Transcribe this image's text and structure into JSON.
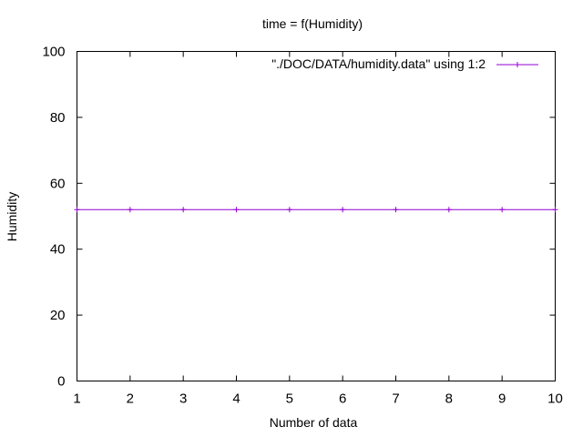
{
  "chart_data": {
    "type": "line",
    "title": "time = f(Humidity)",
    "xlabel": "Number of data",
    "ylabel": "Humidity",
    "xlim": [
      1,
      10
    ],
    "ylim": [
      0,
      100
    ],
    "xticks": [
      "1",
      "2",
      "3",
      "4",
      "5",
      "6",
      "7",
      "8",
      "9",
      "10"
    ],
    "yticks": [
      "0",
      "20",
      "40",
      "60",
      "80",
      "100"
    ],
    "grid": false,
    "legend_position": "top-right",
    "series": [
      {
        "name": "\"./DOC/DATA/humidity.data\" using 1:2",
        "color": "#9400d3",
        "marker": "plus",
        "x": [
          1,
          2,
          3,
          4,
          5,
          6,
          7,
          8,
          9,
          10
        ],
        "y": [
          52,
          52,
          52,
          52,
          52,
          52,
          52,
          52,
          52,
          52
        ]
      }
    ]
  }
}
